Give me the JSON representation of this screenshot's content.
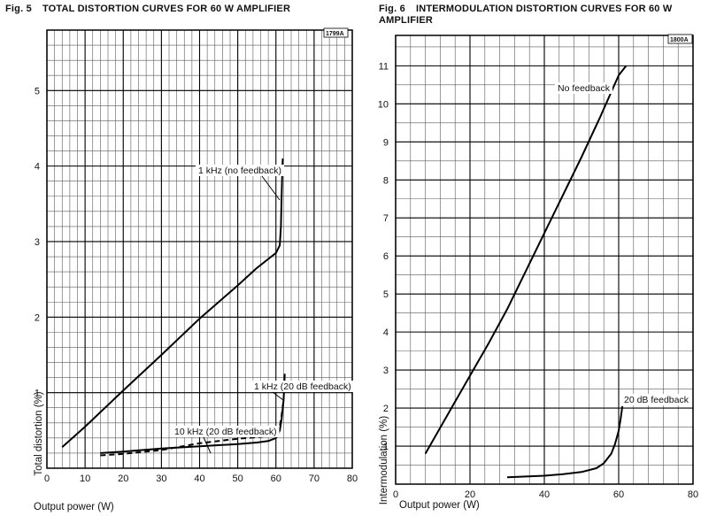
{
  "figures": [
    {
      "number": "Fig. 5",
      "title": "TOTAL DISTORTION CURVES FOR 60 W AMPLIFIER",
      "code": "1799A"
    },
    {
      "number": "Fig. 6",
      "title": "INTERMODULATION DISTORTION CURVES FOR 60 W",
      "title_line2": "AMPLIFIER",
      "code": "1800A"
    }
  ],
  "chart_data": [
    {
      "type": "line",
      "title": "TOTAL DISTORTION CURVES FOR 60 W AMPLIFIER",
      "xlabel": "Output power (W)",
      "ylabel": "Total distortion (%)",
      "xlim": [
        0,
        80
      ],
      "ylim": [
        0,
        5.8
      ],
      "x_ticks": [
        0,
        10,
        20,
        30,
        40,
        50,
        60,
        70,
        80
      ],
      "y_ticks": [
        1,
        2,
        3,
        4,
        5
      ],
      "grid": true,
      "series": [
        {
          "name": "1 kHz (no feedback)",
          "style": "solid",
          "x": [
            4,
            10,
            20,
            30,
            40,
            50,
            55,
            58,
            60,
            61,
            61.3,
            61.5,
            61.7,
            61.8
          ],
          "y": [
            0.28,
            0.55,
            1.03,
            1.5,
            1.98,
            2.42,
            2.65,
            2.77,
            2.85,
            2.95,
            3.2,
            3.6,
            4.0,
            4.1
          ]
        },
        {
          "name": "1 kHz (20 dB feedback)",
          "style": "solid",
          "x": [
            14,
            20,
            30,
            40,
            50,
            55,
            58,
            60,
            61,
            61.5,
            62,
            62.2,
            62.3
          ],
          "y": [
            0.2,
            0.22,
            0.26,
            0.29,
            0.32,
            0.34,
            0.36,
            0.4,
            0.5,
            0.65,
            0.9,
            1.1,
            1.25
          ]
        },
        {
          "name": "10 kHz (20 dB feedback)",
          "style": "dashed",
          "x": [
            14,
            20,
            30,
            40,
            50,
            55,
            58,
            60,
            61,
            61.5,
            62
          ],
          "y": [
            0.17,
            0.19,
            0.24,
            0.33,
            0.39,
            0.41,
            0.43,
            0.47,
            0.55,
            0.7,
            0.9
          ]
        }
      ],
      "annotations": [
        "1 kHz (no feedback)",
        "1 kHz (20 dB feedback)",
        "10 kHz (20 dB feedback)"
      ]
    },
    {
      "type": "line",
      "title": "INTERMODULATION DISTORTION CURVES FOR 60 W AMPLIFIER",
      "xlabel": "Output power (W)",
      "ylabel": "Intermodulation (%)",
      "xlim": [
        0,
        80
      ],
      "ylim": [
        0,
        11.8
      ],
      "x_ticks": [
        0,
        20,
        40,
        60,
        80
      ],
      "y_ticks": [
        1,
        2,
        3,
        4,
        5,
        6,
        7,
        8,
        9,
        10,
        11
      ],
      "grid": true,
      "series": [
        {
          "name": "No feedback",
          "style": "solid",
          "x": [
            8,
            15,
            20,
            25,
            30,
            35,
            40,
            45,
            50,
            55,
            60,
            62
          ],
          "y": [
            0.8,
            2.0,
            2.85,
            3.7,
            4.6,
            5.6,
            6.6,
            7.6,
            8.6,
            9.65,
            10.75,
            11.0
          ]
        },
        {
          "name": "20 dB feedback",
          "style": "solid",
          "x": [
            30,
            40,
            45,
            50,
            54,
            56,
            58,
            59,
            60,
            60.5,
            61
          ],
          "y": [
            0.18,
            0.22,
            0.26,
            0.32,
            0.42,
            0.55,
            0.8,
            1.05,
            1.4,
            1.7,
            2.05
          ]
        }
      ],
      "annotations": [
        "No feedback",
        "20 dB feedback"
      ]
    }
  ]
}
